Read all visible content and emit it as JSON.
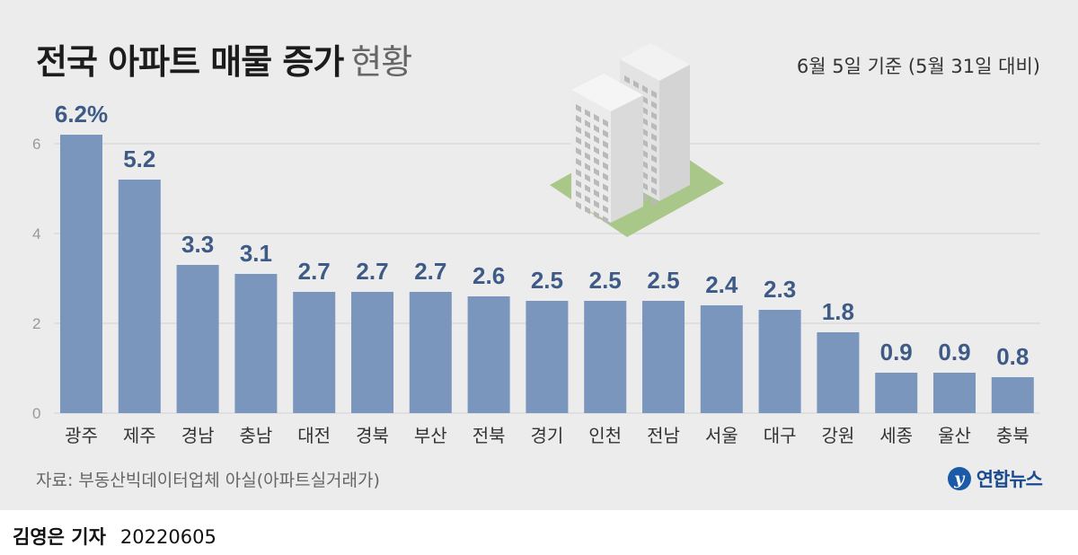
{
  "header": {
    "title_bold": "전국 아파트 매물 증가",
    "title_light": "현황",
    "date_note": "6월 5일 기준 (5월 31일 대비)"
  },
  "footer": {
    "source": "자료: 부동산빅데이터업체 아실(아파트실거래가)",
    "logo_text": "연합뉴스",
    "logo_mark": "y",
    "reporter": "김영은 기자",
    "date": "20220605"
  },
  "chart_data": {
    "type": "bar",
    "categories": [
      "광주",
      "제주",
      "경남",
      "충남",
      "대전",
      "경북",
      "부산",
      "전북",
      "경기",
      "인천",
      "전남",
      "서울",
      "대구",
      "강원",
      "세종",
      "울산",
      "충북"
    ],
    "values": [
      6.2,
      5.2,
      3.3,
      3.1,
      2.7,
      2.7,
      2.7,
      2.6,
      2.5,
      2.5,
      2.5,
      2.4,
      2.3,
      1.8,
      0.9,
      0.9,
      0.8
    ],
    "value_labels": [
      "6.2%",
      "5.2",
      "3.3",
      "3.1",
      "2.7",
      "2.7",
      "2.7",
      "2.6",
      "2.5",
      "2.5",
      "2.5",
      "2.4",
      "2.3",
      "1.8",
      "0.9",
      "0.9",
      "0.8"
    ],
    "yticks": [
      0,
      2,
      4,
      6
    ],
    "ylim": [
      0,
      6.2
    ],
    "grid": true,
    "colors": {
      "bar": "#7b96bd",
      "value_label": "#3e5b87",
      "grid": "#d2d2d2",
      "tick": "#999999",
      "category": "#333333"
    }
  },
  "illustration": {
    "name": "apartment-buildings-icon",
    "colors": {
      "building": "#e6e6e6",
      "window": "#b9b9b9",
      "ground": "#a9c788"
    }
  }
}
